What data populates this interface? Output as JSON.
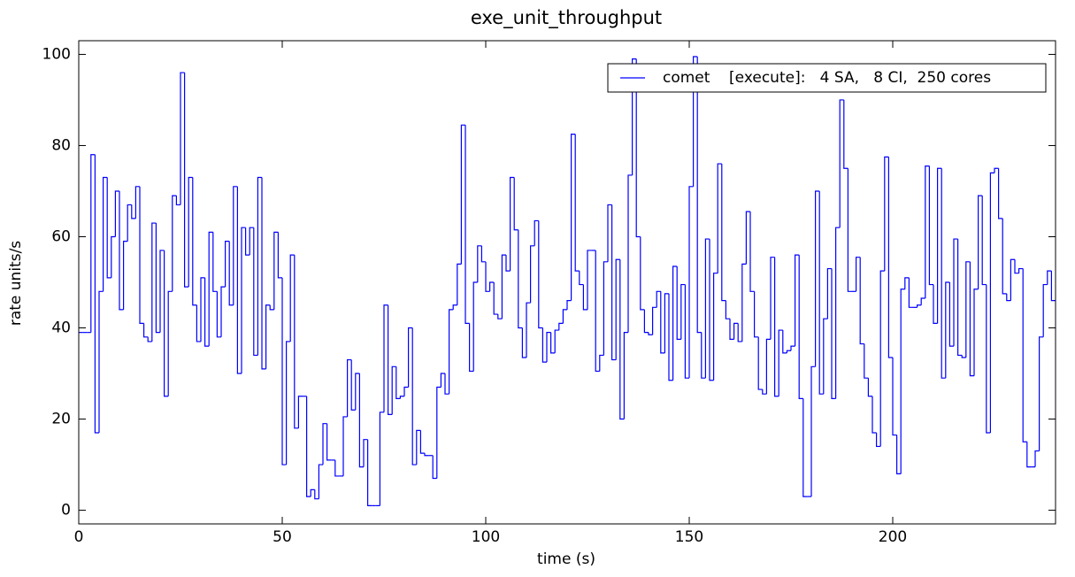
{
  "chart_data": {
    "type": "step",
    "title": "exe_unit_throughput",
    "xlabel": "time (s)",
    "ylabel": "rate units/s",
    "xlim": [
      0,
      240
    ],
    "ylim": [
      -3,
      103
    ],
    "xticks": [
      0,
      50,
      100,
      150,
      200
    ],
    "yticks": [
      0,
      20,
      40,
      60,
      80,
      100
    ],
    "grid": false,
    "legend": "upper right",
    "x": [
      0,
      1,
      2,
      3,
      4,
      5,
      6,
      7,
      8,
      9,
      10,
      11,
      12,
      13,
      14,
      15,
      16,
      17,
      18,
      19,
      20,
      21,
      22,
      23,
      24,
      25,
      26,
      27,
      28,
      29,
      30,
      31,
      32,
      33,
      34,
      35,
      36,
      37,
      38,
      39,
      40,
      41,
      42,
      43,
      44,
      45,
      46,
      47,
      48,
      49,
      50,
      51,
      52,
      53,
      54,
      55,
      56,
      57,
      58,
      59,
      60,
      61,
      62,
      63,
      64,
      65,
      66,
      67,
      68,
      69,
      70,
      71,
      72,
      73,
      74,
      75,
      76,
      77,
      78,
      79,
      80,
      81,
      82,
      83,
      84,
      85,
      86,
      87,
      88,
      89,
      90,
      91,
      92,
      93,
      94,
      95,
      96,
      97,
      98,
      99,
      100,
      101,
      102,
      103,
      104,
      105,
      106,
      107,
      108,
      109,
      110,
      111,
      112,
      113,
      114,
      115,
      116,
      117,
      118,
      119,
      120,
      121,
      122,
      123,
      124,
      125,
      126,
      127,
      128,
      129,
      130,
      131,
      132,
      133,
      134,
      135,
      136,
      137,
      138,
      139,
      140,
      141,
      142,
      143,
      144,
      145,
      146,
      147,
      148,
      149,
      150,
      151,
      152,
      153,
      154,
      155,
      156,
      157,
      158,
      159,
      160,
      161,
      162,
      163,
      164,
      165,
      166,
      167,
      168,
      169,
      170,
      171,
      172,
      173,
      174,
      175,
      176,
      177,
      178,
      179,
      180,
      181,
      182,
      183,
      184,
      185,
      186,
      187,
      188,
      189,
      190,
      191,
      192,
      193,
      194,
      195,
      196,
      197,
      198,
      199,
      200,
      201,
      202,
      203,
      204,
      205,
      206,
      207,
      208,
      209,
      210,
      211,
      212,
      213,
      214,
      215,
      216,
      217,
      218,
      219,
      220,
      221,
      222,
      223,
      224,
      225,
      226,
      227,
      228,
      229,
      230,
      231,
      232,
      233,
      234,
      235,
      236,
      237,
      238,
      239
    ],
    "series": [
      {
        "name": "comet    [execute]:   4 SA,   8 CI,  250 cores",
        "color": "#0000ff",
        "values": [
          39,
          39,
          39,
          78,
          17,
          48,
          73,
          51,
          60,
          70,
          44,
          59,
          67,
          64,
          71,
          41,
          38,
          37,
          63,
          39,
          57,
          25,
          48,
          69,
          67,
          96,
          49,
          73,
          45,
          37,
          51,
          36,
          61,
          48,
          38,
          49,
          59,
          45,
          71,
          30,
          62,
          56,
          62,
          34,
          73,
          31,
          45,
          44,
          61,
          51,
          10,
          37,
          56,
          18,
          25,
          25,
          3,
          4.5,
          2.5,
          10,
          19,
          11,
          11,
          7.5,
          7.5,
          20.5,
          33,
          22,
          30,
          9.5,
          15.5,
          1,
          1,
          1,
          21.5,
          45,
          21,
          31.5,
          24.5,
          25,
          27,
          40,
          10,
          17.5,
          12.5,
          12,
          12,
          7,
          27,
          30,
          25.5,
          44,
          45,
          54,
          84.5,
          41,
          30.5,
          50,
          58,
          54.5,
          48,
          50,
          43,
          42,
          56,
          52.5,
          73,
          61.5,
          40,
          33.5,
          45.5,
          58,
          63.5,
          40,
          32.5,
          39,
          34.5,
          39.5,
          41,
          44,
          46,
          82.5,
          52.5,
          49.5,
          44,
          57,
          57,
          30.5,
          34,
          54.5,
          67,
          33,
          55,
          20,
          39,
          73.5,
          99,
          60,
          44,
          39,
          38.5,
          44.5,
          48,
          34.5,
          47.5,
          28.5,
          53.5,
          37.5,
          49.5,
          29,
          71,
          99.5,
          39,
          29,
          59.5,
          28.5,
          52,
          76,
          46,
          42,
          37.5,
          41,
          37,
          54,
          65.5,
          48,
          38,
          26.5,
          25.5,
          37.5,
          55.5,
          25,
          39.5,
          34.5,
          35,
          36,
          56,
          24.5,
          3,
          3,
          31.5,
          70,
          25.5,
          42,
          53,
          24.5,
          62,
          90,
          75,
          48,
          48,
          55.5,
          36.5,
          29,
          25,
          17,
          14,
          52.5,
          77.5,
          33.5,
          16.5,
          8,
          48.5,
          51,
          44.5,
          44.5,
          45,
          46.5,
          75.5,
          49.5,
          41,
          75,
          29,
          50,
          36,
          59.5,
          34,
          33.5,
          54.5,
          29.5,
          48.5,
          69,
          49.5,
          17,
          74,
          75,
          64,
          47.5,
          46,
          55,
          52,
          53,
          15,
          9.5,
          9.5,
          13,
          38,
          49.5,
          52.5,
          46
        ]
      }
    ]
  }
}
